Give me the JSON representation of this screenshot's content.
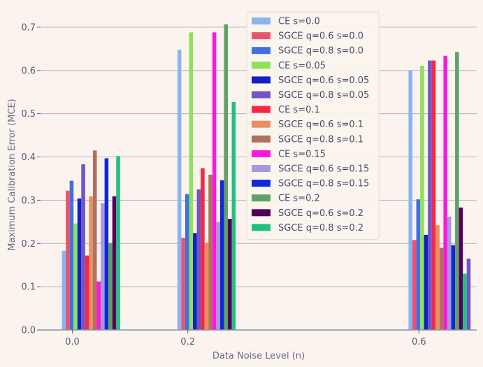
{
  "chart_data": {
    "type": "bar",
    "xlabel": "Data Noise Level (n)",
    "ylabel": "Maximum Calibration Error (MCE)",
    "ylim": [
      0,
      0.75
    ],
    "yticks": [
      "0.0",
      "0.1",
      "0.2",
      "0.3",
      "0.4",
      "0.5",
      "0.6",
      "0.7"
    ],
    "x": [
      0.0,
      0.2,
      0.6
    ],
    "x_tick_labels": [
      "0.0",
      "0.2",
      "0.6"
    ],
    "xlim": [
      -0.055,
      0.7
    ],
    "grid": "horizontal",
    "legend_position": "top-center",
    "series": [
      {
        "name": "CE s=0.0",
        "color": "#8ab4f0",
        "values": [
          0.183,
          0.648,
          0.6
        ]
      },
      {
        "name": "SGCE q=0.6 s=0.0",
        "color": "#e8546e",
        "values": [
          0.322,
          0.213,
          0.208
        ]
      },
      {
        "name": "SGCE q=0.8 s=0.0",
        "color": "#3f6fe0",
        "values": [
          0.345,
          0.314,
          0.302
        ]
      },
      {
        "name": "CE s=0.05",
        "color": "#8fe05a",
        "values": [
          0.246,
          0.688,
          0.611
        ]
      },
      {
        "name": "SGCE q=0.6 s=0.05",
        "color": "#1220c8",
        "values": [
          0.304,
          0.224,
          0.22
        ]
      },
      {
        "name": "SGCE q=0.8 s=0.05",
        "color": "#7155c2",
        "values": [
          0.383,
          0.325,
          0.623
        ]
      },
      {
        "name": "CE s=0.1",
        "color": "#f5284a",
        "values": [
          0.172,
          0.374,
          0.623
        ]
      },
      {
        "name": "SGCE q=0.6 s=0.1",
        "color": "#e89060",
        "values": [
          0.309,
          0.202,
          0.242
        ]
      },
      {
        "name": "SGCE q=0.8 s=0.1",
        "color": "#b07060",
        "values": [
          0.415,
          0.359,
          0.19
        ]
      },
      {
        "name": "CE s=0.15",
        "color": "#fc18dc",
        "values": [
          0.112,
          0.688,
          0.634
        ]
      },
      {
        "name": "SGCE q=0.6 s=0.15",
        "color": "#a898de",
        "values": [
          0.293,
          0.25,
          0.262
        ]
      },
      {
        "name": "SGCE q=0.8 s=0.15",
        "color": "#0f28d8",
        "values": [
          0.397,
          0.346,
          0.196
        ]
      },
      {
        "name": "CE s=0.2",
        "color": "#62a065",
        "values": [
          0.201,
          0.707,
          0.643
        ]
      },
      {
        "name": "SGCE q=0.6 s=0.2",
        "color": "#520058",
        "values": [
          0.309,
          0.257,
          0.283
        ]
      },
      {
        "name": "SGCE q=0.8 s=0.2",
        "color": "#22c080",
        "values": [
          0.402,
          0.527,
          0.13
        ]
      }
    ],
    "extra_bars": [
      {
        "color": "#7155c2",
        "x": 0.6,
        "values": [
          0.165
        ]
      }
    ]
  }
}
